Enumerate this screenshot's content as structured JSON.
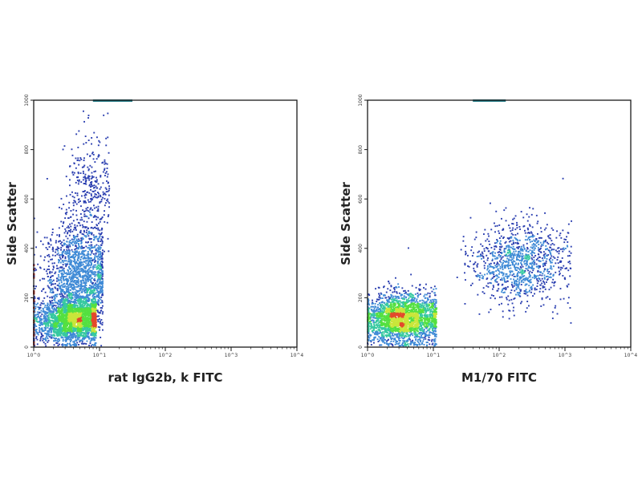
{
  "chart_data": [
    {
      "type": "scatter",
      "title": "",
      "xlabel": "rat IgG2b, k FITC",
      "ylabel": "Side Scatter",
      "x_scale": "log",
      "xlim": [
        1,
        10000
      ],
      "ylim": [
        0,
        1000
      ],
      "x_ticks": [
        "10^0",
        "10^1",
        "10^2",
        "10^3",
        "10^4"
      ],
      "y_ticks": [
        "0",
        "200",
        "400",
        "600",
        "800",
        "1000"
      ],
      "grid": false,
      "legend": "none",
      "density_colormap": [
        "#2b3fb0",
        "#3f8ad6",
        "#36c9a0",
        "#54e040",
        "#c9e63a",
        "#e3492b"
      ],
      "series": [
        {
          "clusters": [
            {
              "x_log_center": 0.6,
              "x_log_spread": 0.28,
              "y_center": 110,
              "y_spread": 45,
              "density": "very high",
              "x_log_max": 0.95
            },
            {
              "x_log_center": 0.7,
              "x_log_spread": 0.25,
              "y_center": 290,
              "y_spread": 110,
              "density": "high",
              "x_log_max": 1.05
            },
            {
              "x_log_center": 0.9,
              "x_log_spread": 0.2,
              "y_center": 640,
              "y_spread": 110,
              "density": "low",
              "x_log_max": 1.15
            }
          ],
          "saturation_band_x_log": [
            0.9,
            1.5
          ]
        }
      ]
    },
    {
      "type": "scatter",
      "title": "",
      "xlabel": "M1/70 FITC",
      "ylabel": "Side Scatter",
      "x_scale": "log",
      "xlim": [
        1,
        10000
      ],
      "ylim": [
        0,
        1000
      ],
      "x_ticks": [
        "10^0",
        "10^1",
        "10^2",
        "10^3",
        "10^4"
      ],
      "y_ticks": [
        "0",
        "200",
        "400",
        "600",
        "800",
        "1000"
      ],
      "grid": false,
      "legend": "none",
      "density_colormap": [
        "#2b3fb0",
        "#3f8ad6",
        "#36c9a0",
        "#54e040",
        "#c9e63a",
        "#e3492b"
      ],
      "series": [
        {
          "clusters": [
            {
              "x_log_center": 0.55,
              "x_log_spread": 0.3,
              "y_center": 115,
              "y_spread": 50,
              "density": "very high",
              "x_log_max": 1.05
            },
            {
              "x_log_center": 2.3,
              "x_log_spread": 0.35,
              "y_center": 340,
              "y_spread": 80,
              "density": "medium",
              "x_log_max": 3.1
            }
          ],
          "saturation_band_x_log": [
            1.6,
            2.1
          ]
        }
      ]
    }
  ]
}
